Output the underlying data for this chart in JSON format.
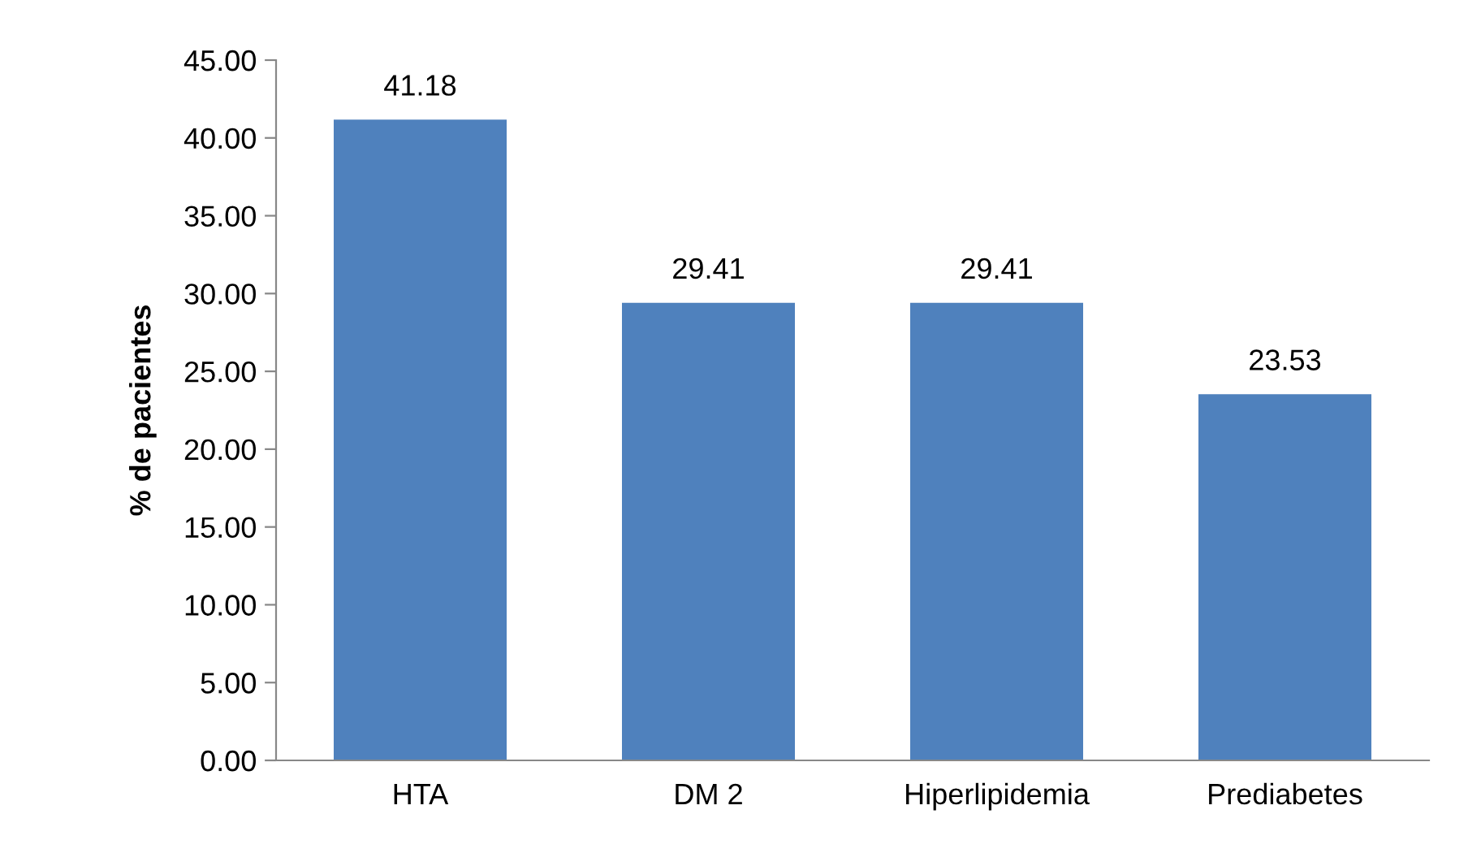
{
  "chart_data": {
    "type": "bar",
    "ylabel": "% de pacientes",
    "categories": [
      "HTA",
      "DM 2",
      "Hiperlipidemia",
      "Prediabetes"
    ],
    "values": [
      41.18,
      29.41,
      29.41,
      23.53
    ],
    "color": "#4f81bd",
    "ylim": [
      0,
      45
    ],
    "yticks": [
      {
        "value": 0,
        "label": "0.00"
      },
      {
        "value": 5,
        "label": "5.00"
      },
      {
        "value": 10,
        "label": "10.00"
      },
      {
        "value": 15,
        "label": "15.00"
      },
      {
        "value": 20,
        "label": "20.00"
      },
      {
        "value": 25,
        "label": "25.00"
      },
      {
        "value": 30,
        "label": "30.00"
      },
      {
        "value": 35,
        "label": "35.00"
      },
      {
        "value": 40,
        "label": "40.00"
      },
      {
        "value": 45,
        "label": "45.00"
      }
    ],
    "grid": false,
    "data_labels": true
  }
}
